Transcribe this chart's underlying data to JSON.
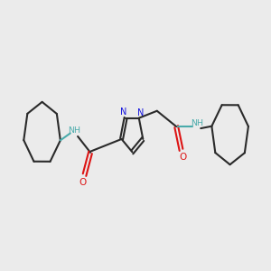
{
  "background_color": "#ebebeb",
  "bond_color": "#2a2a2a",
  "bond_width": 1.5,
  "N_color": "#1414dd",
  "O_color": "#dd1414",
  "NH_color": "#4aabab",
  "figsize": [
    3.0,
    3.0
  ],
  "dpi": 100,
  "xlim": [
    0,
    10
  ],
  "ylim": [
    2,
    8
  ]
}
